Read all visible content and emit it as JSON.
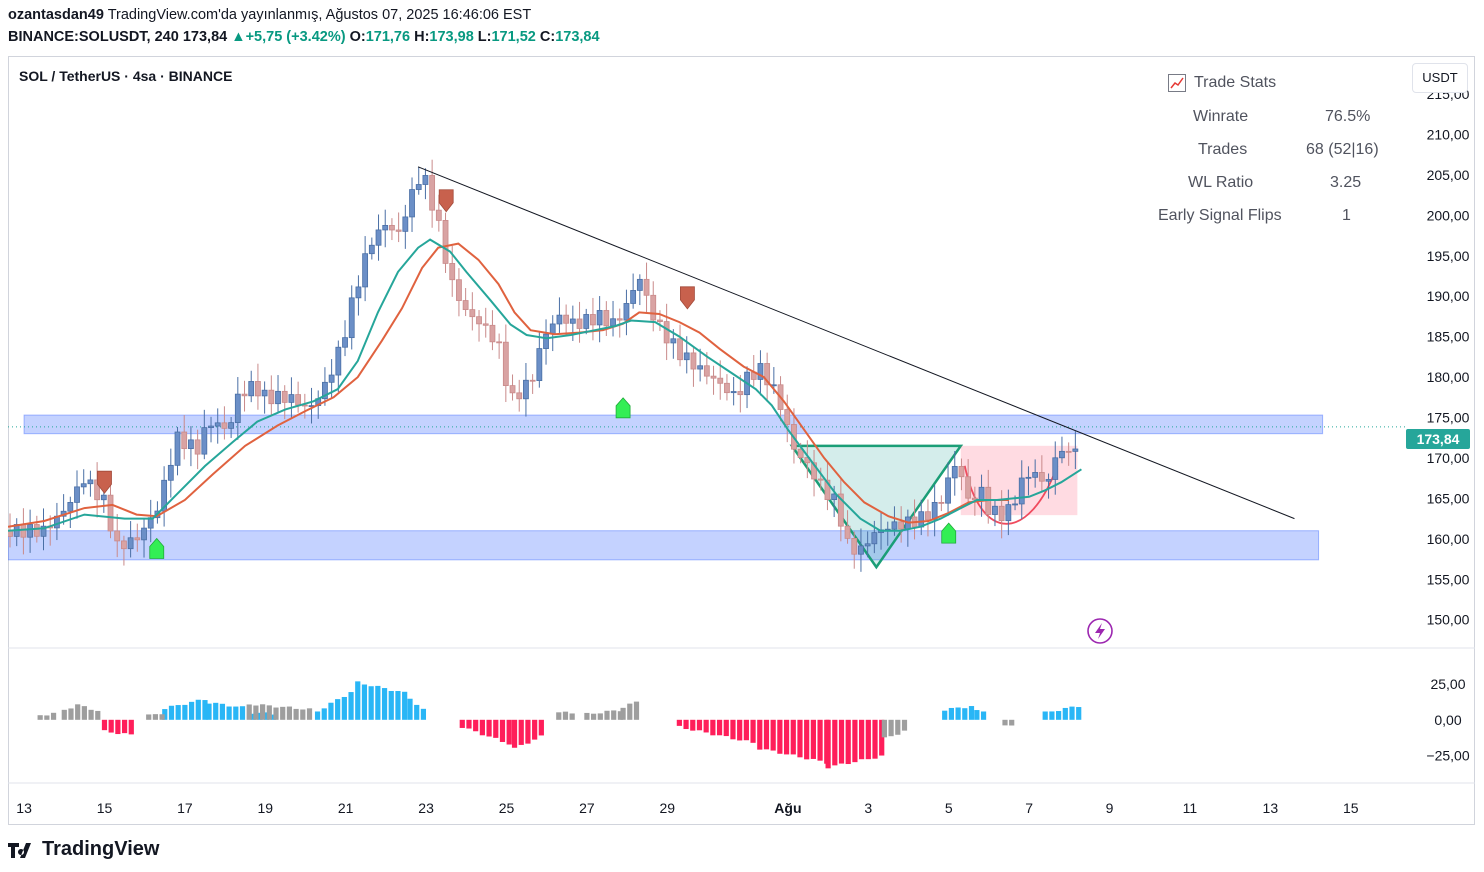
{
  "header": {
    "author": "ozantasdan49",
    "published": "TradingView.com'da yayınlanmış, Ağustos 07, 2025 16:46:06 EST",
    "symbol_line": "BINANCE:SOLUSDT, 240",
    "last": "173,84",
    "change": "+5,75 (+3.42%)",
    "o_label": "O:",
    "o": "171,76",
    "h_label": "H:",
    "h": "173,98",
    "l_label": "L:",
    "l": "171,52",
    "c_label": "C:",
    "c": "173,84"
  },
  "legend": "SOL / TetherUS · 4sa · BINANCE",
  "unit_button": "USDT",
  "price_tag": "173,84",
  "trade_stats": {
    "title": "Trade Stats",
    "rows": [
      {
        "label": "Winrate",
        "value": "76.5%"
      },
      {
        "label": "Trades",
        "value": "68 (52|16)"
      },
      {
        "label": "WL Ratio",
        "value": "3.25"
      },
      {
        "label": "Early Signal Flips",
        "value": "1"
      }
    ]
  },
  "brand": "TradingView",
  "colors": {
    "up": "#4a6fa5",
    "down": "#c98a8a",
    "ema_fast": "#26a69a",
    "ema_slow": "#e0623f",
    "zone": "#3d6bff",
    "hist_pos": "#29b6f6",
    "hist_neg": "#ff1e5a",
    "hist_neutral": "#9e9e9e",
    "buy": "#33ee55",
    "sell": "#c8614d",
    "accent": "#26a69a"
  },
  "chart_data": {
    "type": "candlestick",
    "price_axis": {
      "ticks": [
        "215,00",
        "210,00",
        "205,00",
        "200,00",
        "195,00",
        "190,00",
        "185,00",
        "180,00",
        "175,00",
        "170,00",
        "165,00",
        "160,00",
        "155,00",
        "150,00"
      ],
      "values": [
        215,
        210,
        205,
        200,
        195,
        190,
        185,
        180,
        175,
        170,
        165,
        160,
        155,
        150
      ],
      "range": [
        146.5,
        219.7
      ]
    },
    "osc_axis": {
      "ticks": [
        "25,00",
        "0,00",
        "−25,00"
      ],
      "values": [
        25,
        0,
        -25
      ],
      "range": [
        -44,
        50
      ]
    },
    "x_axis": {
      "ticks": [
        "13",
        "15",
        "17",
        "19",
        "21",
        "23",
        "25",
        "27",
        "29",
        "Ağu",
        "3",
        "5",
        "7",
        "9",
        "11",
        "13",
        "15"
      ],
      "days": [
        13,
        15,
        17,
        19,
        21,
        23,
        25,
        27,
        29,
        32,
        34,
        36,
        38,
        40,
        42,
        44,
        46
      ],
      "range": [
        12.6,
        47.3
      ]
    },
    "anchors": [
      [
        12.6,
        161.0
      ],
      [
        13.5,
        161.0
      ],
      [
        14.0,
        163.5
      ],
      [
        14.5,
        167.5
      ],
      [
        15.0,
        164.5
      ],
      [
        15.3,
        159.0
      ],
      [
        15.8,
        160.0
      ],
      [
        16.3,
        163.5
      ],
      [
        16.5,
        167.0
      ],
      [
        16.8,
        172.5
      ],
      [
        17.3,
        171.0
      ],
      [
        17.6,
        174.5
      ],
      [
        18.1,
        173.5
      ],
      [
        18.3,
        177.5
      ],
      [
        18.7,
        179.0
      ],
      [
        19.0,
        177.5
      ],
      [
        19.6,
        177.5
      ],
      [
        20.1,
        176.0
      ],
      [
        20.5,
        179.0
      ],
      [
        20.9,
        184.0
      ],
      [
        21.2,
        190.0
      ],
      [
        21.6,
        196.5
      ],
      [
        22.0,
        199.0
      ],
      [
        22.3,
        197.5
      ],
      [
        22.6,
        202.0
      ],
      [
        22.9,
        205.5
      ],
      [
        23.3,
        199.0
      ],
      [
        23.6,
        192.0
      ],
      [
        24.0,
        188.0
      ],
      [
        24.4,
        186.5
      ],
      [
        24.8,
        184.0
      ],
      [
        25.1,
        177.0
      ],
      [
        25.5,
        179.0
      ],
      [
        25.7,
        180.5
      ],
      [
        25.9,
        185.0
      ],
      [
        26.3,
        187.5
      ],
      [
        26.7,
        186.5
      ],
      [
        27.3,
        187.5
      ],
      [
        27.7,
        186.5
      ],
      [
        28.0,
        189.0
      ],
      [
        28.3,
        192.5
      ],
      [
        28.6,
        188.0
      ],
      [
        28.9,
        185.5
      ],
      [
        29.3,
        183.0
      ],
      [
        29.8,
        181.0
      ],
      [
        30.1,
        180.0
      ],
      [
        30.7,
        177.5
      ],
      [
        31.0,
        180.0
      ],
      [
        31.3,
        181.0
      ],
      [
        31.6,
        179.0
      ],
      [
        31.9,
        175.5
      ],
      [
        32.1,
        171.5
      ],
      [
        32.5,
        169.0
      ],
      [
        32.9,
        166.0
      ],
      [
        33.2,
        164.5
      ],
      [
        33.5,
        159.0
      ],
      [
        33.8,
        158.5
      ],
      [
        34.1,
        160.5
      ],
      [
        34.5,
        161.5
      ],
      [
        35.0,
        162.0
      ],
      [
        35.3,
        162.5
      ],
      [
        35.6,
        163.5
      ],
      [
        35.9,
        165.5
      ],
      [
        36.1,
        169.5
      ],
      [
        36.3,
        168.0
      ],
      [
        36.5,
        164.5
      ],
      [
        36.8,
        166.0
      ],
      [
        37.0,
        163.5
      ],
      [
        37.3,
        163.0
      ],
      [
        37.5,
        163.5
      ],
      [
        37.7,
        165.5
      ],
      [
        37.9,
        168.0
      ],
      [
        38.2,
        168.0
      ],
      [
        38.4,
        166.5
      ],
      [
        38.6,
        169.0
      ],
      [
        38.8,
        171.5
      ],
      [
        39.0,
        170.0
      ],
      [
        39.2,
        172.5
      ],
      [
        39.3,
        173.8
      ]
    ],
    "ema_fast": [
      [
        12.6,
        161.0
      ],
      [
        13.5,
        161.3
      ],
      [
        14.5,
        163.0
      ],
      [
        15.5,
        162.5
      ],
      [
        16.2,
        162.5
      ],
      [
        16.8,
        165.5
      ],
      [
        17.5,
        169.0
      ],
      [
        18.2,
        172.0
      ],
      [
        18.8,
        174.5
      ],
      [
        19.5,
        176.0
      ],
      [
        20.2,
        177.0
      ],
      [
        20.8,
        178.5
      ],
      [
        21.3,
        182.0
      ],
      [
        21.8,
        188.0
      ],
      [
        22.3,
        193.0
      ],
      [
        22.8,
        196.0
      ],
      [
        23.1,
        197.0
      ],
      [
        23.6,
        195.5
      ],
      [
        24.0,
        193.0
      ],
      [
        24.6,
        189.5
      ],
      [
        25.1,
        186.5
      ],
      [
        25.5,
        185.2
      ],
      [
        26.0,
        184.8
      ],
      [
        26.6,
        185.2
      ],
      [
        27.2,
        185.8
      ],
      [
        27.7,
        186.3
      ],
      [
        28.1,
        187.0
      ],
      [
        28.7,
        186.8
      ],
      [
        29.3,
        185.0
      ],
      [
        30.0,
        182.5
      ],
      [
        30.6,
        180.5
      ],
      [
        31.2,
        178.5
      ],
      [
        31.6,
        176.5
      ],
      [
        32.0,
        173.5
      ],
      [
        32.6,
        169.5
      ],
      [
        33.2,
        165.5
      ],
      [
        33.8,
        162.5
      ],
      [
        34.3,
        161.0
      ],
      [
        34.8,
        161.0
      ],
      [
        35.3,
        161.5
      ],
      [
        35.8,
        162.5
      ],
      [
        36.3,
        163.8
      ],
      [
        36.7,
        164.8
      ],
      [
        37.2,
        164.8
      ],
      [
        37.6,
        165.0
      ],
      [
        38.0,
        165.2
      ],
      [
        38.4,
        166.0
      ],
      [
        38.8,
        167.0
      ],
      [
        39.3,
        168.6
      ]
    ],
    "ema_slow": [
      [
        12.6,
        161.5
      ],
      [
        13.5,
        162.2
      ],
      [
        14.5,
        163.8
      ],
      [
        15.2,
        164.2
      ],
      [
        15.8,
        163.0
      ],
      [
        16.3,
        162.8
      ],
      [
        17.0,
        164.8
      ],
      [
        17.7,
        168.0
      ],
      [
        18.5,
        171.5
      ],
      [
        19.3,
        174.0
      ],
      [
        20.0,
        175.8
      ],
      [
        20.7,
        177.5
      ],
      [
        21.3,
        180.0
      ],
      [
        21.9,
        184.5
      ],
      [
        22.4,
        188.5
      ],
      [
        22.9,
        193.5
      ],
      [
        23.3,
        196.0
      ],
      [
        23.8,
        196.5
      ],
      [
        24.3,
        194.5
      ],
      [
        24.8,
        191.5
      ],
      [
        25.2,
        188.0
      ],
      [
        25.6,
        185.8
      ],
      [
        26.2,
        185.3
      ],
      [
        26.8,
        185.5
      ],
      [
        27.4,
        185.8
      ],
      [
        27.9,
        186.6
      ],
      [
        28.3,
        188.0
      ],
      [
        28.8,
        187.8
      ],
      [
        29.3,
        186.8
      ],
      [
        29.8,
        185.5
      ],
      [
        30.3,
        183.5
      ],
      [
        30.9,
        181.3
      ],
      [
        31.4,
        180.0
      ],
      [
        31.9,
        177.0
      ],
      [
        32.4,
        173.5
      ],
      [
        32.9,
        170.0
      ],
      [
        33.4,
        167.0
      ],
      [
        33.9,
        164.5
      ],
      [
        34.5,
        162.8
      ],
      [
        35.0,
        162.0
      ],
      [
        35.5,
        162.2
      ],
      [
        36.0,
        163.2
      ],
      [
        36.5,
        164.5
      ],
      [
        37.0,
        164.8
      ],
      [
        37.5,
        164.8
      ]
    ],
    "zones": [
      {
        "x": [
          13.0,
          45.3
        ],
        "y": [
          173.0,
          175.3
        ]
      },
      {
        "x": [
          12.6,
          45.2
        ],
        "y": [
          157.4,
          161.0
        ]
      }
    ],
    "trendline": [
      [
        22.8,
        206.0
      ],
      [
        44.6,
        162.5
      ]
    ],
    "green_triangle": [
      [
        32.1,
        171.5
      ],
      [
        36.3,
        171.5
      ],
      [
        34.2,
        156.5
      ]
    ],
    "red_cup": {
      "x": [
        36.3,
        39.2
      ],
      "top": 171.5,
      "bottom": 160.7
    },
    "buy_signals": [
      [
        16.3,
        158.8
      ],
      [
        27.9,
        176.2
      ],
      [
        36.0,
        160.7
      ]
    ],
    "sell_signals": [
      [
        15.0,
        167.0
      ],
      [
        23.5,
        201.8
      ],
      [
        29.5,
        189.8
      ]
    ],
    "last_price": 173.84,
    "histogram": {
      "positive_segments": [
        [
          16.5,
          17.6,
          8,
          15
        ],
        [
          17.6,
          18.6,
          12,
          8
        ],
        [
          18.7,
          19.3,
          5,
          4
        ],
        [
          20.3,
          21.3,
          6,
          22
        ],
        [
          21.3,
          22.6,
          26,
          18
        ],
        [
          22.6,
          23.1,
          15,
          3
        ],
        [
          35.9,
          36.7,
          7,
          10
        ],
        [
          36.7,
          37.0,
          6,
          6
        ],
        [
          38.4,
          39.3,
          5,
          10
        ]
      ],
      "negative_segments": [
        [
          15.0,
          15.8,
          -8,
          -11
        ],
        [
          23.9,
          25.2,
          -5,
          -18
        ],
        [
          25.2,
          26.0,
          -20,
          -10
        ],
        [
          29.3,
          31.3,
          -5,
          -17
        ],
        [
          31.3,
          33.0,
          -20,
          -30
        ],
        [
          33.0,
          34.4,
          -33,
          -25
        ]
      ],
      "neutral_segments": [
        [
          13.4,
          13.8,
          3,
          5
        ],
        [
          14.0,
          14.5,
          7,
          12
        ],
        [
          14.5,
          15.0,
          9,
          5
        ],
        [
          16.1,
          16.5,
          3,
          5
        ],
        [
          18.6,
          20.2,
          11,
          7
        ],
        [
          26.3,
          26.8,
          5,
          5
        ],
        [
          27.0,
          27.9,
          4,
          7
        ],
        [
          27.9,
          28.3,
          9,
          13
        ],
        [
          34.4,
          35.0,
          -13,
          -7
        ],
        [
          37.4,
          37.6,
          -4,
          -3
        ]
      ]
    }
  }
}
